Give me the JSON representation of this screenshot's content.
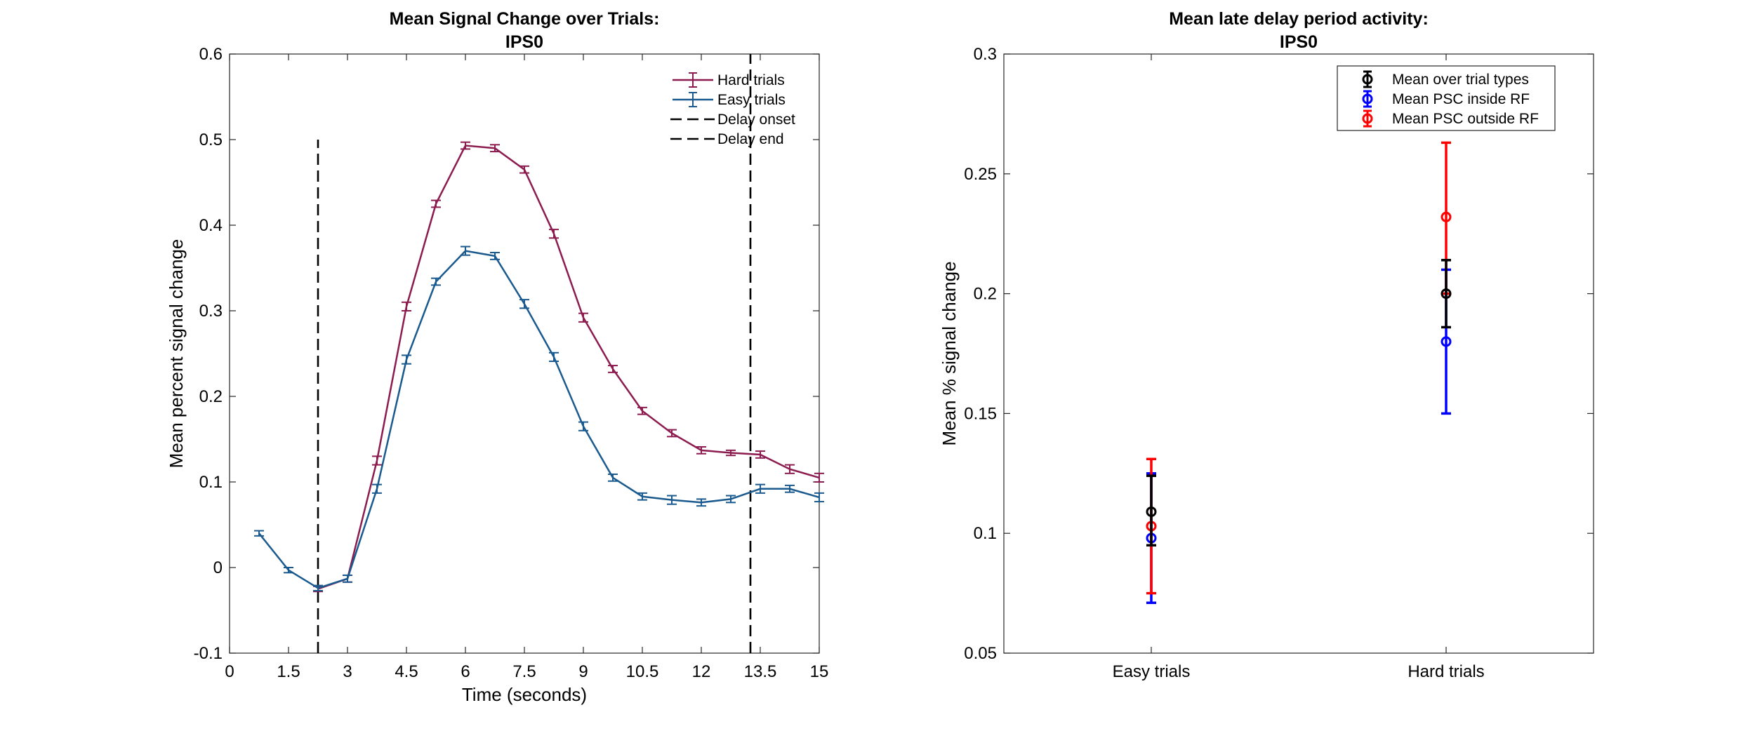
{
  "chart_data": [
    {
      "type": "line",
      "title": [
        "Mean Signal Change over Trials:",
        "IPS0"
      ],
      "xlabel": "Time (seconds)",
      "ylabel": "Mean percent signal change",
      "xlim": [
        0,
        15
      ],
      "ylim": [
        -0.1,
        0.6
      ],
      "xticks": [
        0,
        1.5,
        3,
        4.5,
        6,
        7.5,
        9,
        10.5,
        12,
        13.5,
        15
      ],
      "xtick_labels": [
        "0",
        "1.5",
        "3",
        "4.5",
        "6",
        "7.5",
        "9",
        "10.5",
        "12",
        "13.5",
        "15"
      ],
      "yticks": [
        -0.1,
        0,
        0.1,
        0.2,
        0.3,
        0.4,
        0.5,
        0.6
      ],
      "ytick_labels": [
        "-0.1",
        "0",
        "0.1",
        "0.2",
        "0.3",
        "0.4",
        "0.5",
        "0.6"
      ],
      "grid": false,
      "legend_position": "top-right",
      "series": [
        {
          "name": "Hard trials",
          "color": "#8c1c4f",
          "x": [
            2.25,
            3,
            3.75,
            4.5,
            5.25,
            6,
            6.75,
            7.5,
            8.25,
            9,
            9.75,
            10.5,
            11.25,
            12,
            12.75,
            13.5,
            14.25,
            15
          ],
          "y": [
            -0.025,
            -0.013,
            0.125,
            0.305,
            0.425,
            0.493,
            0.49,
            0.465,
            0.39,
            0.292,
            0.232,
            0.183,
            0.157,
            0.137,
            0.134,
            0.132,
            0.115,
            0.105
          ],
          "err": [
            0.003,
            0.004,
            0.005,
            0.005,
            0.004,
            0.004,
            0.004,
            0.004,
            0.005,
            0.005,
            0.004,
            0.004,
            0.004,
            0.004,
            0.003,
            0.004,
            0.005,
            0.005
          ]
        },
        {
          "name": "Easy trials",
          "color": "#1a5a8e",
          "x": [
            0.75,
            1.5,
            2.25,
            3,
            3.75,
            4.5,
            5.25,
            6,
            6.75,
            7.5,
            8.25,
            9,
            9.75,
            10.5,
            11.25,
            12,
            12.75,
            13.5,
            14.25,
            15
          ],
          "y": [
            0.04,
            -0.003,
            -0.024,
            -0.013,
            0.092,
            0.243,
            0.334,
            0.37,
            0.364,
            0.308,
            0.246,
            0.165,
            0.105,
            0.083,
            0.079,
            0.076,
            0.08,
            0.092,
            0.092,
            0.082
          ],
          "err": [
            0.003,
            0.003,
            0.003,
            0.004,
            0.005,
            0.005,
            0.004,
            0.005,
            0.004,
            0.005,
            0.005,
            0.005,
            0.004,
            0.004,
            0.005,
            0.004,
            0.004,
            0.005,
            0.004,
            0.005
          ]
        }
      ],
      "vlines": [
        {
          "name": "Delay onset",
          "x": 2.25,
          "y_range": [
            -0.1,
            0.5
          ],
          "color": "#000000"
        },
        {
          "name": "Delay end",
          "x": 13.25,
          "y_range": [
            -0.1,
            0.6
          ],
          "color": "#000000"
        }
      ]
    },
    {
      "type": "scatter",
      "title": [
        "Mean late delay period activity:",
        "IPS0"
      ],
      "xlabel": "",
      "ylabel": "Mean % signal change",
      "categories": [
        "Easy trials",
        "Hard trials"
      ],
      "xlim": [
        0.5,
        2.5
      ],
      "ylim": [
        0.05,
        0.3
      ],
      "yticks": [
        0.05,
        0.1,
        0.15,
        0.2,
        0.25,
        0.3
      ],
      "ytick_labels": [
        "0.05",
        "0.1",
        "0.15",
        "0.2",
        "0.25",
        "0.3"
      ],
      "grid": false,
      "legend_position": "top-right",
      "series": [
        {
          "name": "Mean over trial types",
          "color": "#000000",
          "y": [
            0.109,
            0.2
          ],
          "low": [
            0.095,
            0.186
          ],
          "high": [
            0.124,
            0.214
          ]
        },
        {
          "name": "Mean PSC inside RF",
          "color": "#0000ff",
          "y": [
            0.098,
            0.18
          ],
          "low": [
            0.071,
            0.15
          ],
          "high": [
            0.125,
            0.21
          ]
        },
        {
          "name": "Mean PSC outside RF",
          "color": "#ff0000",
          "y": [
            0.103,
            0.232
          ],
          "low": [
            0.075,
            0.2
          ],
          "high": [
            0.131,
            0.263
          ]
        }
      ]
    }
  ]
}
